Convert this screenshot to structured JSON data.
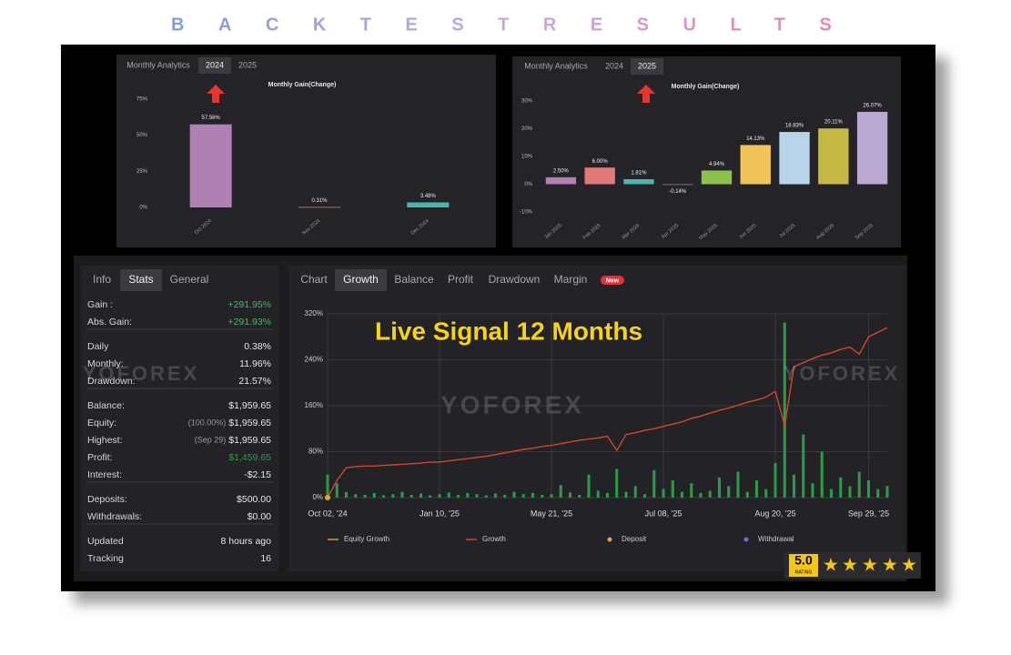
{
  "header": {
    "title": "BACKTESTRESULTS"
  },
  "watermark": "YOFOREX",
  "overlay_text": "Live Signal 12 Months",
  "rating": {
    "score": "5.0",
    "label": "RATING"
  },
  "top_panels": [
    {
      "tabs": [
        "Monthly Analytics",
        "2024",
        "2025"
      ],
      "active_tab": 1,
      "chart": {
        "type": "bar",
        "title": "Monthly Gain(Change)",
        "categories": [
          "Oct 2024",
          "Nov 2024",
          "Dec 2024"
        ],
        "values": [
          57.56,
          0.31,
          3.48
        ],
        "value_labels": [
          "57.56%",
          "0.31%",
          "3.48%"
        ],
        "colors": [
          "#b07fb3",
          "#d9776a",
          "#47b6ae"
        ],
        "ylim": [
          0,
          75
        ],
        "yticks": [
          {
            "value": 0,
            "label": "0%"
          },
          {
            "value": 25,
            "label": "25%"
          },
          {
            "value": 50,
            "label": "50%"
          },
          {
            "value": 75,
            "label": "75%"
          }
        ]
      }
    },
    {
      "tabs": [
        "Monthly Analytics",
        "2024",
        "2025"
      ],
      "active_tab": 2,
      "chart": {
        "type": "bar",
        "title": "Monthly Gain(Change)",
        "categories": [
          "Jan 2025",
          "Feb 2025",
          "Mar 2025",
          "Apr 2025",
          "May 2025",
          "Jun 2025",
          "Jul 2025",
          "Aug 2025",
          "Sep 2025"
        ],
        "values": [
          2.5,
          6.0,
          1.81,
          -0.14,
          4.94,
          14.13,
          18.83,
          20.11,
          26.07
        ],
        "value_labels": [
          "2.50%",
          "6.00%",
          "1.81%",
          "-0.14%",
          "4.94%",
          "14.13%",
          "18.83%",
          "20.11%",
          "26.07%"
        ],
        "colors": [
          "#b07fb3",
          "#e07a78",
          "#47b6ae",
          "#8a8a8a",
          "#8cc24c",
          "#f1c45a",
          "#b9d5ea",
          "#c6b844",
          "#b9a8d2"
        ],
        "ylim": [
          -10,
          30
        ],
        "yticks": [
          {
            "value": -10,
            "label": "-10%"
          },
          {
            "value": 0,
            "label": "0%"
          },
          {
            "value": 10,
            "label": "10%"
          },
          {
            "value": 20,
            "label": "20%"
          },
          {
            "value": 30,
            "label": "30%"
          }
        ]
      }
    }
  ],
  "stats": {
    "tabs": [
      "Info",
      "Stats",
      "General"
    ],
    "active_tab": 1,
    "groups": [
      [
        {
          "label": "Gain :",
          "value": "+291.95%",
          "color": "#3fbf5f"
        },
        {
          "label": "Abs. Gain:",
          "value": "+291.93%",
          "color": "#3fbf5f"
        }
      ],
      [
        {
          "label": "Daily",
          "value": "0.38%"
        },
        {
          "label": "Monthly:",
          "value": "11.96%"
        },
        {
          "label": "Drawdown:",
          "value": "21.57%"
        }
      ],
      [
        {
          "label": "Balance:",
          "value": "$1,959.65"
        },
        {
          "label": "Equity:",
          "note": "(100.00%)",
          "value": "$1,959.65"
        },
        {
          "label": "Highest:",
          "note": "(Sep 29)",
          "value": "$1,959.65"
        },
        {
          "label": "Profit:",
          "value": "$1,459.65",
          "color": "#2f9a4a"
        },
        {
          "label": "Interest:",
          "value": "-$2.15"
        }
      ],
      [
        {
          "label": "Deposits:",
          "value": "$500.00"
        },
        {
          "label": "Withdrawals:",
          "value": "$0.00"
        }
      ],
      [
        {
          "label": "Updated",
          "value": "8 hours ago"
        },
        {
          "label": "Tracking",
          "value": "16"
        }
      ]
    ]
  },
  "growth": {
    "tabs": [
      "Chart",
      "Growth",
      "Balance",
      "Profit",
      "Drawdown",
      "Margin"
    ],
    "active_tab": 1,
    "badge": "New",
    "chart": {
      "type": "line",
      "series": [
        {
          "name": "Growth",
          "color": "#d2462e",
          "values": [
            0,
            30,
            52,
            54,
            55,
            55,
            56,
            57,
            58,
            59,
            60,
            62,
            62,
            64,
            66,
            68,
            70,
            72,
            75,
            78,
            81,
            84,
            86,
            89,
            91,
            94,
            97,
            100,
            102,
            104,
            107,
            82,
            110,
            113,
            117,
            120,
            124,
            128,
            132,
            138,
            142,
            147,
            152,
            156,
            161,
            166,
            170,
            175,
            185,
            125,
            228,
            235,
            242,
            248,
            252,
            258,
            262,
            250,
            280,
            288,
            296
          ]
        }
      ],
      "bars": {
        "color": "#2d9a46",
        "values": [
          40,
          25,
          10,
          6,
          5,
          8,
          4,
          6,
          10,
          5,
          7,
          4,
          6,
          9,
          5,
          8,
          6,
          4,
          7,
          5,
          10,
          6,
          8,
          5,
          6,
          22,
          9,
          5,
          40,
          12,
          8,
          50,
          10,
          20,
          6,
          48,
          15,
          30,
          10,
          25,
          8,
          12,
          35,
          20,
          45,
          10,
          30,
          15,
          60,
          305,
          40,
          110,
          25,
          80,
          15,
          35,
          20,
          45,
          30,
          15,
          20
        ]
      },
      "deposits": {
        "x": [
          0
        ],
        "values": [
          0
        ]
      },
      "xlim": [
        0,
        60
      ],
      "xticks": [
        {
          "value": 0,
          "label": "Oct 02, '24"
        },
        {
          "value": 12,
          "label": "Jan 10, '25"
        },
        {
          "value": 24,
          "label": "May 21, '25"
        },
        {
          "value": 36,
          "label": "Jul 08, '25"
        },
        {
          "value": 48,
          "label": "Aug 20, '25"
        },
        {
          "value": 58,
          "label": "Sep 29, '25"
        }
      ],
      "ylim": [
        0,
        320
      ],
      "yticks": [
        {
          "value": 0,
          "label": "0%"
        },
        {
          "value": 80,
          "label": "80%"
        },
        {
          "value": 160,
          "label": "160%"
        },
        {
          "value": 240,
          "label": "240%"
        },
        {
          "value": 320,
          "label": "320%"
        }
      ],
      "grid": true,
      "legend": [
        {
          "name": "Equity Growth",
          "color": "#c9a23a",
          "marker": "line"
        },
        {
          "name": "Growth",
          "color": "#d2462e",
          "marker": "line"
        },
        {
          "name": "Deposit",
          "color": "#f0a030",
          "marker": "dot"
        },
        {
          "name": "Withdrawal",
          "color": "#7a62e0",
          "marker": "dot"
        }
      ]
    }
  }
}
